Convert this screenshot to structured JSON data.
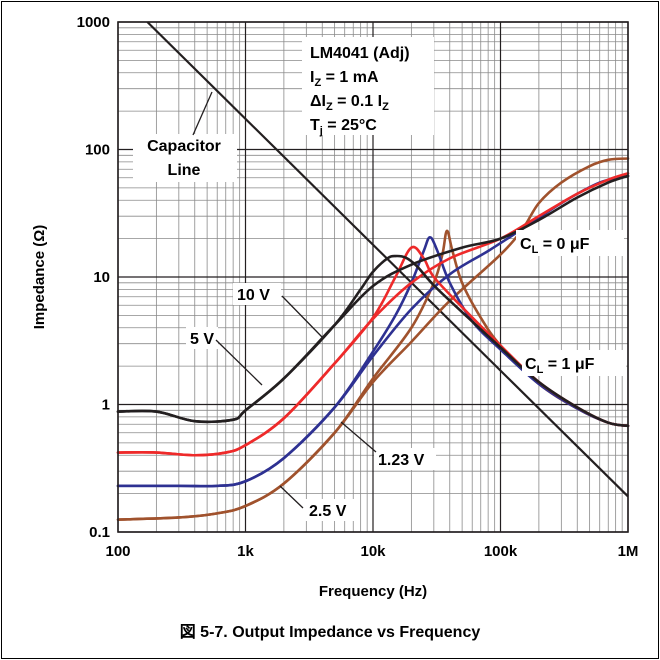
{
  "caption": "図 5-7. Output Impedance vs Frequency",
  "chart_data": {
    "type": "line",
    "title": "",
    "xlabel": "Frequency (Hz)",
    "ylabel": "Impedance (Ω)",
    "xscale": "log",
    "yscale": "log",
    "xlim": [
      100,
      1000000
    ],
    "ylim": [
      0.1,
      1000
    ],
    "grid": true,
    "x_ticks": [
      {
        "value": 100,
        "label": "100"
      },
      {
        "value": 1000,
        "label": "1k"
      },
      {
        "value": 10000,
        "label": "10k"
      },
      {
        "value": 100000,
        "label": "100k"
      },
      {
        "value": 1000000,
        "label": "1M"
      }
    ],
    "y_ticks": [
      {
        "value": 0.1,
        "label": "0.1"
      },
      {
        "value": 1,
        "label": "1"
      },
      {
        "value": 10,
        "label": "10"
      },
      {
        "value": 100,
        "label": "100"
      },
      {
        "value": 1000,
        "label": "1000"
      }
    ],
    "conditions": {
      "device": "LM4041 (Adj)",
      "iz_main": "I",
      "iz_sub": "Z",
      "iz_rest": " = 1 mA",
      "diz_main": "ΔI",
      "diz_sub": "Z",
      "diz_rest": " = 0.1 I",
      "diz_sub2": "Z",
      "tj_main": "T",
      "tj_sub": "j",
      "tj_rest": " = 25°C"
    },
    "colors": {
      "10V": "#231f20",
      "5V": "#ee2a2a",
      "1.23V": "#2e3192",
      "2.5V": "#a0522d",
      "capacitor": "#231f20"
    },
    "capacitor_line": {
      "label_line1": "Capacitor",
      "label_line2": "Line",
      "points": [
        [
          170,
          1000
        ],
        [
          1000000,
          0.19
        ]
      ]
    },
    "series": [
      {
        "name": "10 V",
        "key": "10V",
        "cl": 0,
        "points": [
          [
            100,
            0.88
          ],
          [
            200,
            0.88
          ],
          [
            400,
            0.74
          ],
          [
            800,
            0.76
          ],
          [
            1000,
            0.9
          ],
          [
            2000,
            1.6
          ],
          [
            5000,
            4.2
          ],
          [
            8000,
            8
          ],
          [
            10000,
            11
          ],
          [
            13000,
            14
          ],
          [
            15000,
            14.6
          ],
          [
            18000,
            14.2
          ],
          [
            22000,
            12.2
          ],
          [
            30000,
            8.6
          ],
          [
            50000,
            5.3
          ],
          [
            100000,
            2.8
          ],
          [
            200000,
            1.5
          ],
          [
            400000,
            0.95
          ],
          [
            700000,
            0.72
          ],
          [
            1000000,
            0.68
          ]
        ]
      },
      {
        "name": "10 V",
        "key": "10V",
        "cl": 1,
        "points": [
          [
            100,
            0.88
          ],
          [
            200,
            0.88
          ],
          [
            400,
            0.74
          ],
          [
            800,
            0.76
          ],
          [
            1000,
            0.9
          ],
          [
            2000,
            1.6
          ],
          [
            5000,
            4.2
          ],
          [
            10000,
            8.5
          ],
          [
            20000,
            12.5
          ],
          [
            50000,
            17
          ],
          [
            100000,
            20
          ],
          [
            200000,
            28
          ],
          [
            400000,
            42
          ],
          [
            700000,
            55
          ],
          [
            1000000,
            62
          ]
        ]
      },
      {
        "name": "5 V",
        "key": "5V",
        "cl": 0,
        "points": [
          [
            100,
            0.42
          ],
          [
            200,
            0.42
          ],
          [
            400,
            0.4
          ],
          [
            700,
            0.42
          ],
          [
            1000,
            0.48
          ],
          [
            2000,
            0.78
          ],
          [
            5000,
            2.1
          ],
          [
            10000,
            4.8
          ],
          [
            15000,
            10
          ],
          [
            20000,
            17
          ],
          [
            25000,
            14
          ],
          [
            30000,
            10
          ],
          [
            50000,
            5.8
          ],
          [
            100000,
            2.9
          ],
          [
            200000,
            1.5
          ],
          [
            400000,
            0.95
          ],
          [
            700000,
            0.72
          ],
          [
            1000000,
            0.68
          ]
        ]
      },
      {
        "name": "5 V",
        "key": "5V",
        "cl": 1,
        "points": [
          [
            100,
            0.42
          ],
          [
            200,
            0.42
          ],
          [
            400,
            0.4
          ],
          [
            700,
            0.42
          ],
          [
            1000,
            0.48
          ],
          [
            2000,
            0.78
          ],
          [
            5000,
            2.1
          ],
          [
            10000,
            4.7
          ],
          [
            20000,
            9
          ],
          [
            40000,
            14
          ],
          [
            100000,
            20
          ],
          [
            200000,
            30
          ],
          [
            400000,
            45
          ],
          [
            700000,
            58
          ],
          [
            1000000,
            65
          ]
        ]
      },
      {
        "name": "1.23 V",
        "key": "1.23V",
        "cl": 0,
        "points": [
          [
            100,
            0.23
          ],
          [
            300,
            0.23
          ],
          [
            600,
            0.23
          ],
          [
            1000,
            0.25
          ],
          [
            2000,
            0.38
          ],
          [
            5000,
            0.95
          ],
          [
            10000,
            2.6
          ],
          [
            15000,
            5
          ],
          [
            20000,
            9
          ],
          [
            25000,
            16
          ],
          [
            28000,
            20.5
          ],
          [
            32000,
            16
          ],
          [
            40000,
            9
          ],
          [
            60000,
            4.5
          ],
          [
            100000,
            2.7
          ],
          [
            200000,
            1.45
          ],
          [
            400000,
            0.93
          ],
          [
            700000,
            0.72
          ],
          [
            1000000,
            0.68
          ]
        ]
      },
      {
        "name": "1.23 V",
        "key": "1.23V",
        "cl": 1,
        "points": [
          [
            100,
            0.23
          ],
          [
            300,
            0.23
          ],
          [
            600,
            0.23
          ],
          [
            1000,
            0.25
          ],
          [
            2000,
            0.38
          ],
          [
            5000,
            0.95
          ],
          [
            10000,
            2.4
          ],
          [
            20000,
            5.6
          ],
          [
            40000,
            10.5
          ],
          [
            80000,
            16
          ],
          [
            150000,
            24
          ],
          [
            300000,
            38
          ],
          [
            600000,
            55
          ],
          [
            1000000,
            62
          ]
        ]
      },
      {
        "name": "2.5 V",
        "key": "2.5V",
        "cl": 0,
        "points": [
          [
            100,
            0.125
          ],
          [
            300,
            0.13
          ],
          [
            600,
            0.14
          ],
          [
            1000,
            0.16
          ],
          [
            2000,
            0.24
          ],
          [
            5000,
            0.6
          ],
          [
            10000,
            1.6
          ],
          [
            20000,
            4
          ],
          [
            30000,
            9
          ],
          [
            35000,
            15
          ],
          [
            38000,
            23
          ],
          [
            42000,
            16
          ],
          [
            50000,
            9
          ],
          [
            70000,
            4.8
          ],
          [
            100000,
            2.9
          ],
          [
            200000,
            1.45
          ],
          [
            400000,
            0.93
          ],
          [
            700000,
            0.72
          ],
          [
            1000000,
            0.68
          ]
        ]
      },
      {
        "name": "2.5 V",
        "key": "2.5V",
        "cl": 1,
        "points": [
          [
            100,
            0.125
          ],
          [
            300,
            0.13
          ],
          [
            600,
            0.14
          ],
          [
            1000,
            0.16
          ],
          [
            2000,
            0.24
          ],
          [
            5000,
            0.6
          ],
          [
            10000,
            1.5
          ],
          [
            20000,
            3.1
          ],
          [
            40000,
            6.5
          ],
          [
            100000,
            15
          ],
          [
            150000,
            24
          ],
          [
            200000,
            38
          ],
          [
            300000,
            55
          ],
          [
            500000,
            74
          ],
          [
            700000,
            83
          ],
          [
            1000000,
            85
          ]
        ]
      }
    ],
    "annotations": [
      {
        "key": "10V",
        "text": "10 V"
      },
      {
        "key": "5V",
        "text": "5 V"
      },
      {
        "key": "1.23V",
        "text": "1.23 V"
      },
      {
        "key": "2.5V",
        "text": "2.5 V"
      },
      {
        "key": "cl0",
        "main": "C",
        "sub": "L",
        "rest": " = 0 μF"
      },
      {
        "key": "cl1",
        "main": "C",
        "sub": "L",
        "rest": " = 1 μF"
      }
    ]
  }
}
